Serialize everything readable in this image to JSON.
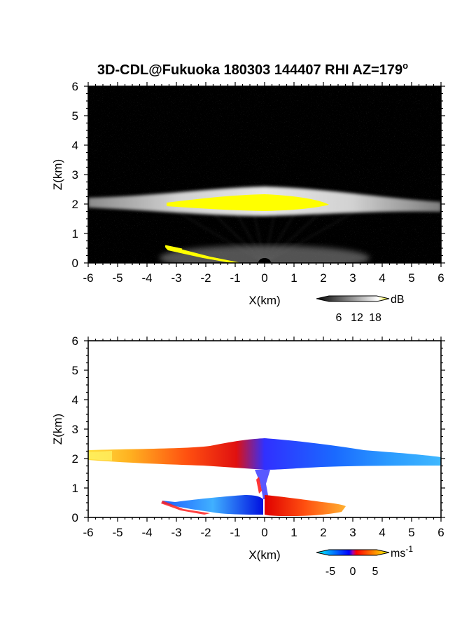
{
  "chart_data": [
    {
      "type": "heatmap",
      "panel": "reflectivity",
      "title": "3D-CDL@Fukuoka 180303 144407 RHI AZ=179",
      "title_superscript": "o",
      "xlabel": "X(km)",
      "ylabel": "Z(km)",
      "xlim": [
        -6,
        6
      ],
      "ylim": [
        0,
        6
      ],
      "xticks": [
        "-6",
        "-5",
        "-4",
        "-3",
        "-2",
        "-1",
        "0",
        "1",
        "2",
        "3",
        "4",
        "5",
        "6"
      ],
      "yticks": [
        "0",
        "1",
        "2",
        "3",
        "4",
        "5",
        "6"
      ],
      "background": "#000000",
      "colorscale": [
        "#000000",
        "#ffffff",
        "#ffff00"
      ],
      "colorbar": {
        "unit": "dB",
        "ticks": [
          "6",
          "12",
          "18"
        ],
        "range": [
          0,
          20
        ]
      },
      "features": [
        {
          "name": "echo layer",
          "x_range": [
            -6,
            6
          ],
          "z_center": 2.05,
          "thickness": 0.35
        },
        {
          "name": "high-intensity core",
          "x_range": [
            -3.3,
            2.3
          ],
          "z_center": 2.05,
          "value_db": 20
        },
        {
          "name": "ground clutter",
          "x_range": [
            -3.4,
            -0.8
          ],
          "z_range": [
            0.0,
            0.55
          ],
          "value_db": 20
        }
      ]
    },
    {
      "type": "heatmap",
      "panel": "doppler velocity",
      "xlabel": "X(km)",
      "ylabel": "Z(km)",
      "xlim": [
        -6,
        6
      ],
      "ylim": [
        0,
        6
      ],
      "xticks": [
        "-6",
        "-5",
        "-4",
        "-3",
        "-2",
        "-1",
        "0",
        "1",
        "2",
        "3",
        "4",
        "5",
        "6"
      ],
      "yticks": [
        "0",
        "1",
        "2",
        "3",
        "4",
        "5",
        "6"
      ],
      "background": "#ffffff",
      "colorscale": [
        "#00ffff",
        "#0000ff",
        "#ff0000",
        "#ffff00"
      ],
      "colorbar": {
        "unit": "ms",
        "unit_superscript": "-1",
        "ticks": [
          "-5",
          "0",
          "5"
        ],
        "range": [
          -7,
          7
        ]
      },
      "features": [
        {
          "name": "upper layer, left (receding)",
          "x_range": [
            -6,
            -0.3
          ],
          "z_center": 2.05,
          "velocity": [
            6,
            1
          ]
        },
        {
          "name": "upper layer, right (approaching)",
          "x_range": [
            -1.8,
            6
          ],
          "z_center": 2.1,
          "velocity": [
            -2,
            -5
          ]
        },
        {
          "name": "lower layer, left",
          "x_range": [
            -3.5,
            0
          ],
          "z_center": 0.45,
          "velocity": [
            -5,
            -1
          ]
        },
        {
          "name": "lower layer, right",
          "x_range": [
            0,
            2.8
          ],
          "z_center": 0.4,
          "velocity": [
            1,
            5
          ]
        }
      ]
    }
  ]
}
